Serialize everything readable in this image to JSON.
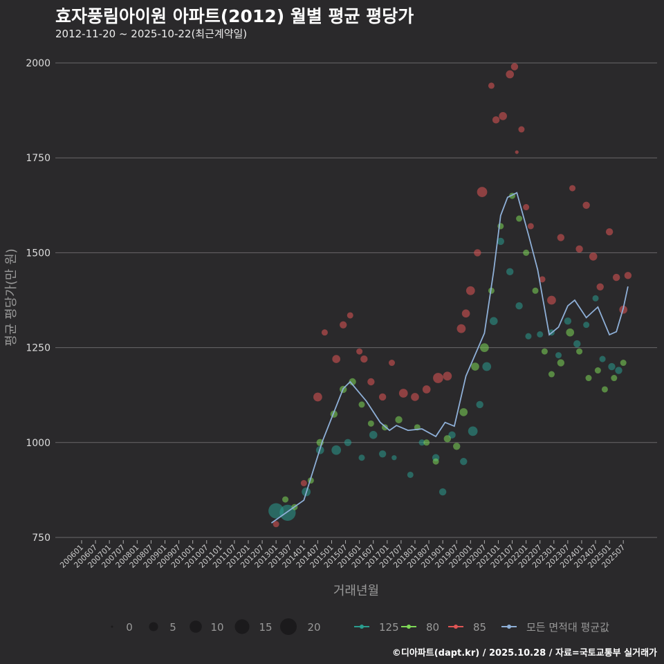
{
  "title": "효자풍림아이원 아파트(2012) 월별 평균 평당가",
  "subtitle": "2012-11-20 ~ 2025-10-22(최근계약일)",
  "credit": "©디아파트(dapt.kr) / 2025.10.28 / 자료=국토교통부 실거래가",
  "chart_data": {
    "type": "scatter",
    "xlabel": "거래년월",
    "ylabel": "평균 평당가(만 원)",
    "ylim": [
      750,
      2000
    ],
    "yticks": [
      750,
      1000,
      1250,
      1500,
      1750,
      2000
    ],
    "xticks": [
      "200601",
      "200607",
      "200701",
      "200707",
      "200801",
      "200807",
      "200901",
      "200907",
      "201001",
      "201007",
      "201101",
      "201107",
      "201201",
      "201207",
      "201301",
      "201307",
      "201401",
      "201407",
      "201501",
      "201507",
      "201601",
      "201607",
      "201701",
      "201707",
      "201801",
      "201807",
      "201901",
      "201907",
      "202001",
      "202007",
      "202101",
      "202107",
      "202201",
      "202207",
      "202301",
      "202307",
      "202401",
      "202407",
      "202501",
      "202507"
    ],
    "size_legend": {
      "values": [
        0,
        5,
        10,
        15,
        20
      ]
    },
    "colors": {
      "125": "#2a9d8f",
      "80": "#7ed957",
      "85": "#e05555",
      "avg": "#8fb0d8"
    },
    "series": [
      {
        "name": "125",
        "color_key": "125",
        "points": [
          [
            "2013-01",
            820,
            18
          ],
          [
            "2013-06",
            815,
            20
          ],
          [
            "2014-02",
            870,
            6
          ],
          [
            "2014-08",
            980,
            5
          ],
          [
            "2015-03",
            980,
            7
          ],
          [
            "2015-08",
            1000,
            4
          ],
          [
            "2016-02",
            960,
            3
          ],
          [
            "2016-07",
            1020,
            5
          ],
          [
            "2016-11",
            970,
            4
          ],
          [
            "2017-04",
            960,
            2
          ],
          [
            "2017-11",
            915,
            3
          ],
          [
            "2018-04",
            1000,
            3
          ],
          [
            "2018-10",
            960,
            4
          ],
          [
            "2019-01",
            870,
            4
          ],
          [
            "2019-05",
            1020,
            4
          ],
          [
            "2019-10",
            950,
            4
          ],
          [
            "2020-02",
            1030,
            7
          ],
          [
            "2020-05",
            1100,
            4
          ],
          [
            "2020-08",
            1200,
            6
          ],
          [
            "2020-11",
            1320,
            5
          ],
          [
            "2021-02",
            1530,
            4
          ],
          [
            "2021-06",
            1450,
            4
          ],
          [
            "2021-10",
            1360,
            4
          ],
          [
            "2022-02",
            1280,
            3
          ],
          [
            "2022-07",
            1285,
            3
          ],
          [
            "2022-12",
            1290,
            3
          ],
          [
            "2023-03",
            1230,
            3
          ],
          [
            "2023-07",
            1320,
            4
          ],
          [
            "2023-11",
            1260,
            4
          ],
          [
            "2024-03",
            1310,
            3
          ],
          [
            "2024-07",
            1380,
            3
          ],
          [
            "2024-10",
            1220,
            3
          ],
          [
            "2025-02",
            1200,
            4
          ],
          [
            "2025-05",
            1190,
            4
          ]
        ]
      },
      {
        "name": "80",
        "color_key": "80",
        "points": [
          [
            "2013-05",
            850,
            3
          ],
          [
            "2013-09",
            830,
            3
          ],
          [
            "2014-04",
            900,
            3
          ],
          [
            "2014-08",
            1000,
            4
          ],
          [
            "2015-02",
            1075,
            4
          ],
          [
            "2015-06",
            1140,
            4
          ],
          [
            "2015-10",
            1160,
            4
          ],
          [
            "2016-02",
            1100,
            3
          ],
          [
            "2016-06",
            1050,
            3
          ],
          [
            "2016-12",
            1040,
            3
          ],
          [
            "2017-06",
            1060,
            4
          ],
          [
            "2018-02",
            1040,
            3
          ],
          [
            "2018-06",
            1000,
            3
          ],
          [
            "2018-10",
            950,
            3
          ],
          [
            "2019-03",
            1010,
            4
          ],
          [
            "2019-07",
            990,
            4
          ],
          [
            "2019-10",
            1080,
            5
          ],
          [
            "2020-03",
            1200,
            5
          ],
          [
            "2020-07",
            1250,
            6
          ],
          [
            "2020-10",
            1400,
            3
          ],
          [
            "2021-02",
            1570,
            3
          ],
          [
            "2021-07",
            1650,
            3
          ],
          [
            "2021-10",
            1590,
            3
          ],
          [
            "2022-01",
            1500,
            3
          ],
          [
            "2022-05",
            1400,
            3
          ],
          [
            "2022-09",
            1240,
            3
          ],
          [
            "2022-12",
            1180,
            3
          ],
          [
            "2023-04",
            1210,
            4
          ],
          [
            "2023-08",
            1290,
            5
          ],
          [
            "2023-12",
            1240,
            3
          ],
          [
            "2024-04",
            1170,
            3
          ],
          [
            "2024-08",
            1190,
            3
          ],
          [
            "2024-11",
            1140,
            3
          ],
          [
            "2025-03",
            1170,
            3
          ],
          [
            "2025-07",
            1210,
            3
          ]
        ]
      },
      {
        "name": "85",
        "color_key": "85",
        "points": [
          [
            "2013-01",
            785,
            3
          ],
          [
            "2014-01",
            893,
            3
          ],
          [
            "2014-07",
            1120,
            6
          ],
          [
            "2014-10",
            1290,
            3
          ],
          [
            "2015-03",
            1220,
            5
          ],
          [
            "2015-06",
            1310,
            4
          ],
          [
            "2015-09",
            1335,
            3
          ],
          [
            "2016-01",
            1240,
            3
          ],
          [
            "2016-03",
            1220,
            4
          ],
          [
            "2016-06",
            1160,
            4
          ],
          [
            "2016-11",
            1120,
            4
          ],
          [
            "2017-03",
            1210,
            3
          ],
          [
            "2017-08",
            1130,
            6
          ],
          [
            "2018-01",
            1120,
            5
          ],
          [
            "2018-06",
            1140,
            5
          ],
          [
            "2018-11",
            1170,
            8
          ],
          [
            "2019-03",
            1175,
            6
          ],
          [
            "2019-09",
            1300,
            6
          ],
          [
            "2019-11",
            1340,
            5
          ],
          [
            "2020-01",
            1400,
            6
          ],
          [
            "2020-04",
            1500,
            4
          ],
          [
            "2020-06",
            1660,
            8
          ],
          [
            "2020-10",
            1940,
            3
          ],
          [
            "2020-12",
            1850,
            4
          ],
          [
            "2021-03",
            1860,
            5
          ],
          [
            "2021-06",
            1970,
            5
          ],
          [
            "2021-08",
            1990,
            4
          ],
          [
            "2021-09",
            1765,
            1
          ],
          [
            "2021-11",
            1825,
            3
          ],
          [
            "2022-01",
            1620,
            3
          ],
          [
            "2022-03",
            1570,
            3
          ],
          [
            "2022-08",
            1430,
            3
          ],
          [
            "2022-12",
            1375,
            6
          ],
          [
            "2023-04",
            1540,
            4
          ],
          [
            "2023-09",
            1670,
            3
          ],
          [
            "2023-12",
            1510,
            4
          ],
          [
            "2024-03",
            1625,
            4
          ],
          [
            "2024-06",
            1490,
            5
          ],
          [
            "2024-09",
            1410,
            4
          ],
          [
            "2025-01",
            1555,
            4
          ],
          [
            "2025-04",
            1435,
            4
          ],
          [
            "2025-07",
            1350,
            5
          ],
          [
            "2025-09",
            1440,
            4
          ]
        ]
      }
    ],
    "average_line": {
      "name": "모든 면적대 평균값",
      "points": [
        [
          "2012-11",
          788
        ],
        [
          "2014-01",
          848
        ],
        [
          "2014-09",
          1003
        ],
        [
          "2015-06",
          1142
        ],
        [
          "2015-09",
          1160
        ],
        [
          "2016-04",
          1109
        ],
        [
          "2016-10",
          1053
        ],
        [
          "2017-02",
          1032
        ],
        [
          "2017-05",
          1045
        ],
        [
          "2017-10",
          1032
        ],
        [
          "2018-04",
          1036
        ],
        [
          "2018-10",
          1016
        ],
        [
          "2019-02",
          1053
        ],
        [
          "2019-06",
          1043
        ],
        [
          "2019-11",
          1175
        ],
        [
          "2020-07",
          1288
        ],
        [
          "2020-11",
          1452
        ],
        [
          "2021-02",
          1598
        ],
        [
          "2021-05",
          1646
        ],
        [
          "2021-09",
          1658
        ],
        [
          "2022-02",
          1548
        ],
        [
          "2022-06",
          1455
        ],
        [
          "2022-11",
          1284
        ],
        [
          "2023-03",
          1304
        ],
        [
          "2023-07",
          1360
        ],
        [
          "2023-10",
          1375
        ],
        [
          "2024-03",
          1329
        ],
        [
          "2024-08",
          1357
        ],
        [
          "2025-01",
          1284
        ],
        [
          "2025-04",
          1292
        ],
        [
          "2025-07",
          1354
        ],
        [
          "2025-09",
          1411
        ]
      ]
    },
    "legend": [
      "125",
      "80",
      "85",
      "모든 면적대 평균값"
    ]
  }
}
